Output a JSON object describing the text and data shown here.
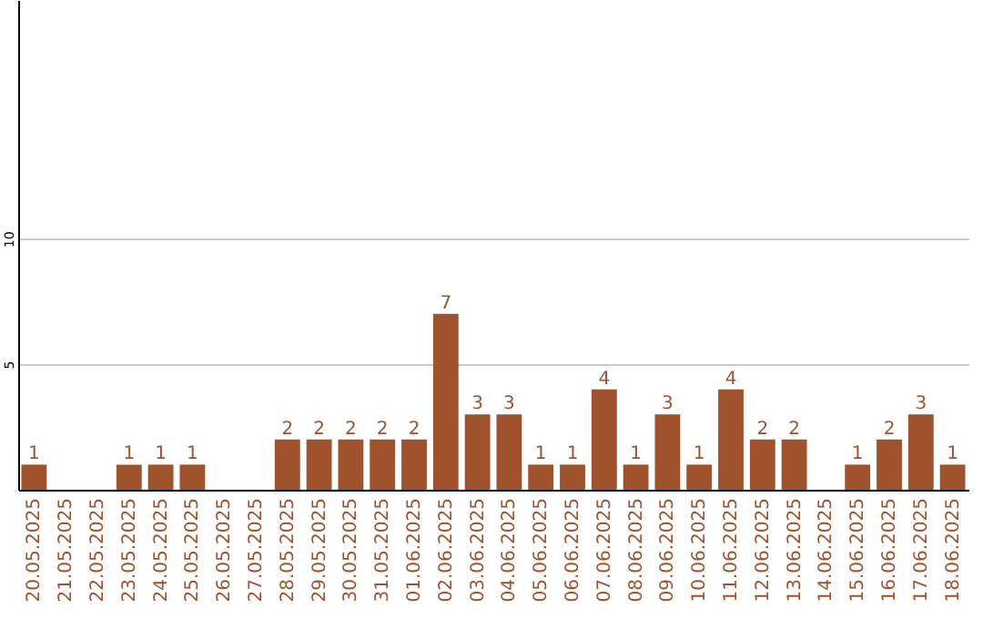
{
  "chart_data": {
    "type": "bar",
    "categories": [
      "20.05.2025",
      "21.05.2025",
      "22.05.2025",
      "23.05.2025",
      "24.05.2025",
      "25.05.2025",
      "26.05.2025",
      "27.05.2025",
      "28.05.2025",
      "29.05.2025",
      "30.05.2025",
      "31.05.2025",
      "01.06.2025",
      "02.06.2025",
      "03.06.2025",
      "04.06.2025",
      "05.06.2025",
      "06.06.2025",
      "07.06.2025",
      "08.06.2025",
      "09.06.2025",
      "10.06.2025",
      "11.06.2025",
      "12.06.2025",
      "13.06.2025",
      "14.06.2025",
      "15.06.2025",
      "16.06.2025",
      "17.06.2025",
      "18.06.2025"
    ],
    "values": [
      1,
      null,
      null,
      1,
      1,
      1,
      null,
      null,
      2,
      2,
      2,
      2,
      2,
      7,
      3,
      3,
      1,
      1,
      4,
      1,
      3,
      1,
      4,
      2,
      2,
      null,
      1,
      2,
      3,
      1
    ],
    "color": "#a0522d",
    "ylim": [
      0,
      19.5
    ],
    "yticks": [
      5,
      10
    ],
    "grid": "y",
    "data_labels": true
  }
}
